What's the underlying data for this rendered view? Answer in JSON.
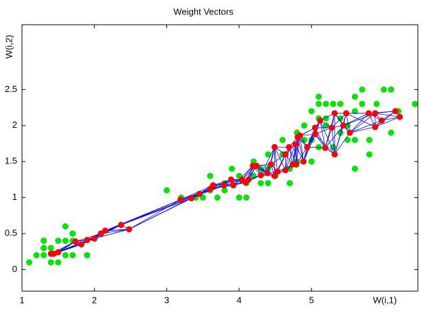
{
  "chart_data": {
    "type": "scatter",
    "title": "Weight Vectors",
    "xlabel": "W(i,1)",
    "ylabel": "W(i,2)",
    "xlim": [
      1,
      6.47
    ],
    "ylim": [
      -0.3,
      3.4
    ],
    "xticks": [
      1,
      2,
      3,
      4,
      5
    ],
    "yticks": [
      0,
      0.5,
      1,
      1.5,
      2,
      2.5
    ],
    "link_color": "#0000ff",
    "series": [
      {
        "color": "#00e600",
        "x": [
          1.1,
          1.2,
          1.3,
          1.3,
          1.3,
          1.4,
          1.4,
          1.5,
          1.5,
          1.6,
          1.6,
          1.6,
          1.7,
          1.7,
          1.9,
          1.7,
          3.0,
          3.2,
          3.4,
          3.5,
          3.6,
          3.7,
          3.8,
          3.9,
          4.0,
          4.1,
          4.0,
          4.1,
          4.2,
          4.3,
          4.4,
          4.4,
          4.5,
          4.6,
          4.7,
          4.7,
          4.8,
          4.9,
          4.9,
          5.0,
          5.0,
          5.1,
          5.1,
          5.2,
          5.2,
          5.3,
          5.4,
          5.4,
          5.4,
          5.5,
          5.5,
          5.6,
          5.6,
          5.6,
          5.7,
          5.7,
          5.8,
          5.8,
          5.9,
          6.0,
          6.1,
          6.1,
          6.2,
          6.43,
          5.6,
          5.0,
          5.1,
          5.2,
          5.3,
          5.1,
          4.8,
          4.6,
          4.4,
          4.2,
          4.3,
          3.8,
          3.6
        ],
        "values": [
          0.1,
          0.2,
          0.3,
          0.4,
          0.2,
          0.1,
          0.3,
          0.1,
          0.4,
          0.6,
          0.4,
          0.2,
          0.5,
          0.2,
          0.2,
          0.4,
          1.1,
          1.0,
          1.0,
          1.0,
          1.3,
          1.0,
          1.2,
          1.4,
          1.0,
          1.0,
          1.3,
          1.2,
          1.5,
          1.4,
          1.2,
          1.4,
          1.3,
          1.6,
          1.2,
          1.4,
          1.5,
          1.8,
          2.0,
          1.8,
          1.5,
          2.4,
          2.3,
          2.3,
          2.0,
          2.3,
          2.3,
          2.1,
          1.9,
          2.0,
          1.8,
          1.8,
          2.4,
          1.4,
          2.5,
          2.3,
          1.6,
          1.8,
          2.3,
          2.5,
          2.5,
          1.9,
          2.2,
          2.3,
          2.2,
          2.2,
          2.1,
          2.1,
          1.7,
          1.7,
          1.9,
          1.8,
          1.6,
          1.3,
          1.2,
          1.1,
          1.1
        ]
      },
      {
        "color": "#ff0000",
        "x": [
          1.4,
          1.44,
          1.5,
          1.74,
          1.82,
          1.9,
          2.0,
          2.09,
          2.15,
          2.37,
          2.48,
          3.19,
          3.34,
          3.45,
          3.6,
          3.64,
          3.79,
          3.89,
          3.92,
          4.04,
          4.09,
          4.13,
          4.19,
          4.24,
          4.3,
          4.39,
          4.44,
          4.49,
          4.49,
          4.53,
          4.64,
          4.64,
          4.69,
          4.74,
          4.78,
          4.79,
          4.81,
          4.84,
          4.89,
          4.94,
          5.05,
          5.05,
          5.12,
          5.19,
          5.28,
          5.32,
          5.32,
          5.44,
          5.48,
          5.53,
          5.79,
          5.88,
          5.88,
          5.97,
          6.16,
          6.22
        ],
        "values": [
          0.22,
          0.22,
          0.24,
          0.39,
          0.35,
          0.41,
          0.43,
          0.5,
          0.54,
          0.62,
          0.56,
          0.97,
          0.99,
          1.05,
          1.12,
          1.17,
          1.17,
          1.25,
          1.17,
          1.25,
          1.21,
          1.25,
          1.44,
          1.44,
          1.31,
          1.34,
          1.46,
          1.3,
          1.7,
          1.36,
          1.6,
          1.38,
          1.7,
          1.46,
          1.74,
          1.46,
          1.84,
          1.86,
          1.5,
          1.7,
          1.97,
          1.88,
          2.07,
          1.69,
          1.97,
          1.6,
          2.17,
          2.0,
          2.17,
          1.9,
          2.17,
          2.17,
          1.98,
          2.07,
          2.2,
          2.12
        ]
      }
    ]
  }
}
